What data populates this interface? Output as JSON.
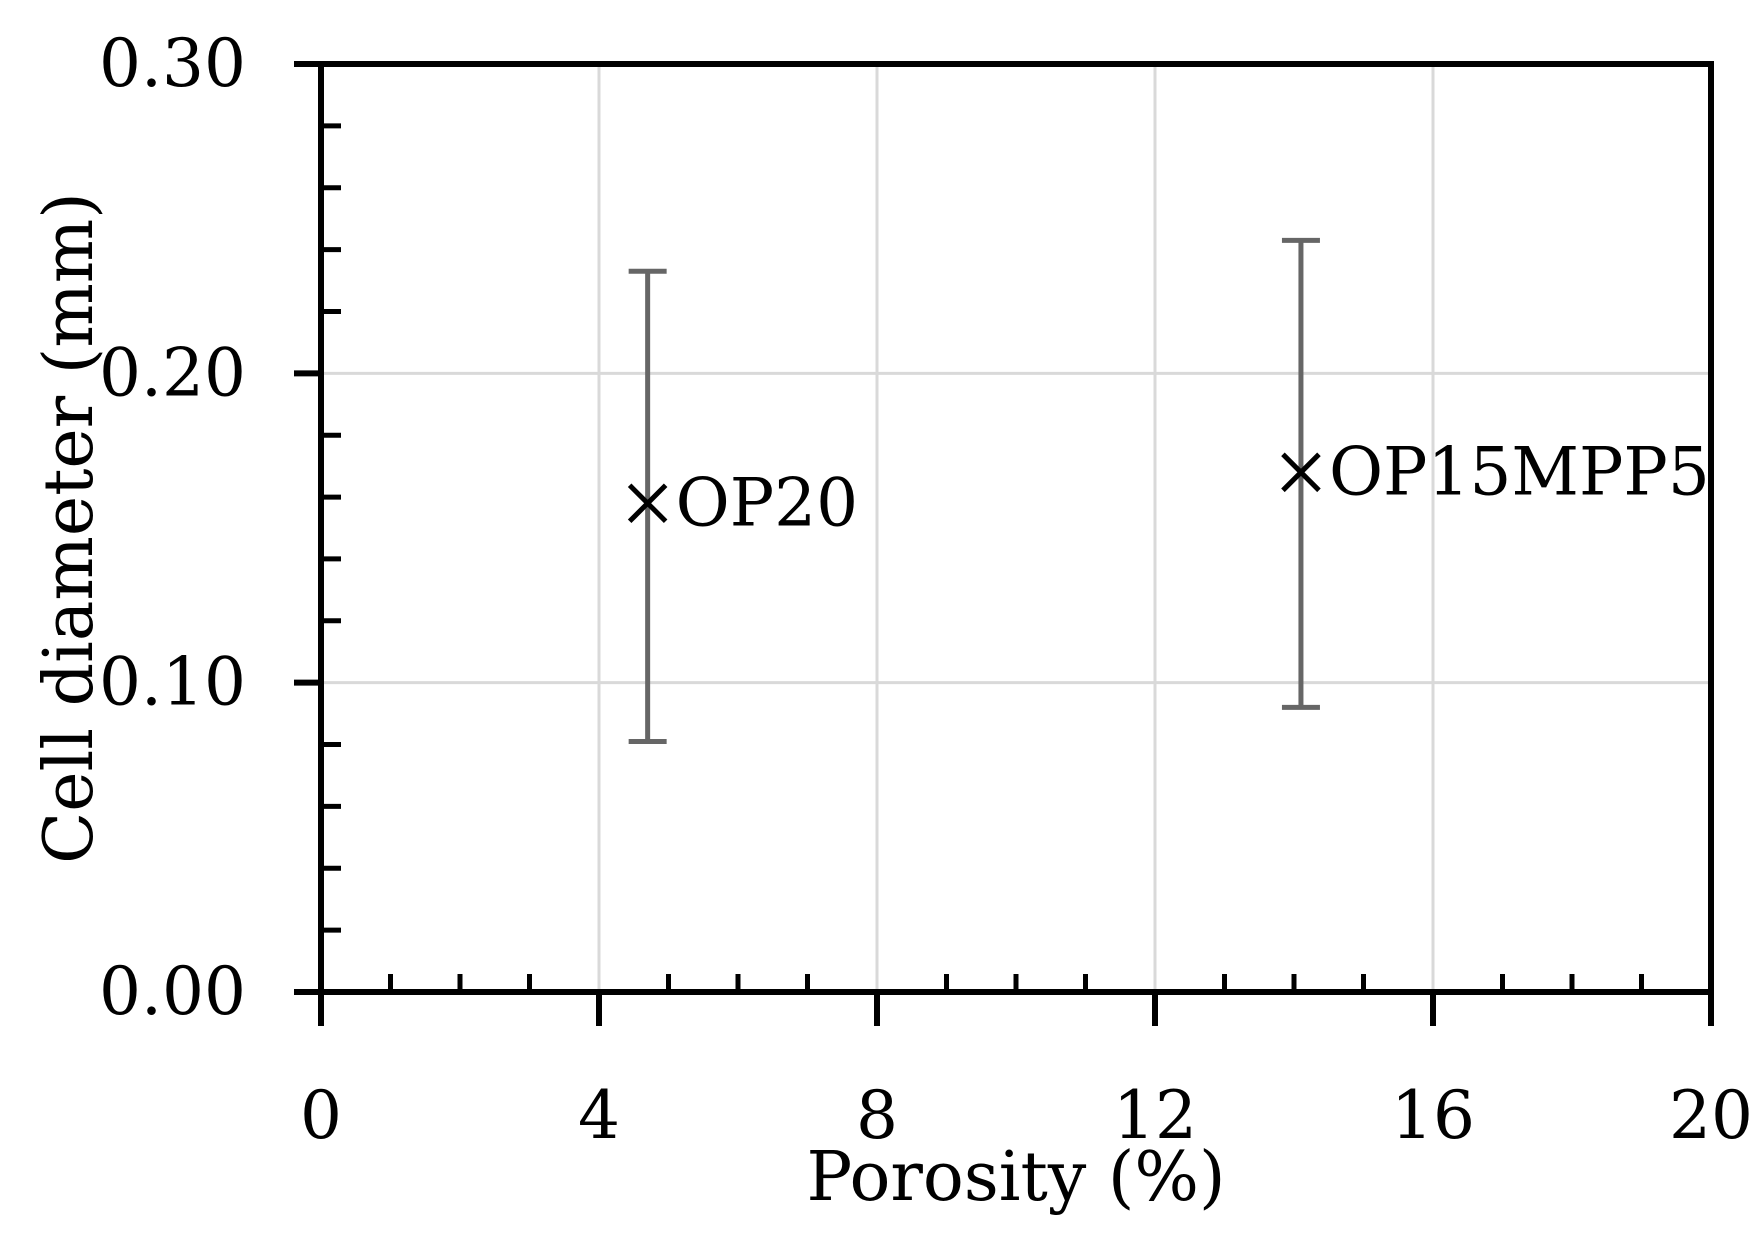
{
  "chart_data": {
    "type": "scatter",
    "title": "",
    "xlabel": "Porosity (%)",
    "ylabel": "Cell diameter (mm)",
    "xlim": [
      0,
      20
    ],
    "ylim": [
      0,
      0.3
    ],
    "x_ticks": [
      "0",
      "4",
      "8",
      "12",
      "16",
      "20"
    ],
    "x_tick_values": [
      0,
      4,
      8,
      12,
      16,
      20
    ],
    "y_ticks": [
      "0.00",
      "0.10",
      "0.20",
      "0.30"
    ],
    "y_tick_values": [
      0,
      0.1,
      0.2,
      0.3
    ],
    "grid": true,
    "points": [
      {
        "label": "OP20",
        "x": 4.7,
        "y": 0.158,
        "y_low": 0.081,
        "y_high": 0.233
      },
      {
        "label": "OP15MPP5",
        "x": 14.1,
        "y": 0.168,
        "y_low": 0.092,
        "y_high": 0.243
      }
    ],
    "colors": {
      "axis": "#000000",
      "grid": "#d9d9d9",
      "error_bar": "#666666",
      "marker": "#000000"
    }
  }
}
